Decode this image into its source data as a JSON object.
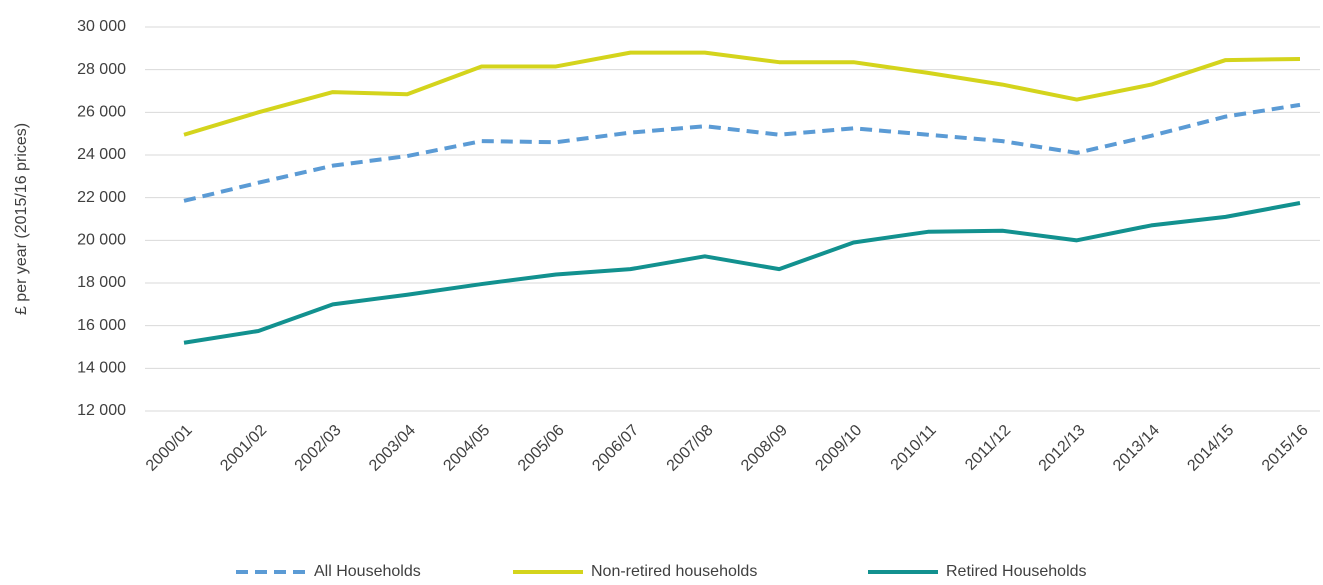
{
  "chart_data": {
    "type": "line",
    "y_label": "£ per year (2015/16 prices)",
    "categories": [
      "2000/01",
      "2001/02",
      "2002/03",
      "2003/04",
      "2004/05",
      "2005/06",
      "2006/07",
      "2007/08",
      "2008/09",
      "2009/10",
      "2010/11",
      "2011/12",
      "2012/13",
      "2013/14",
      "2014/15",
      "2015/16"
    ],
    "series": [
      {
        "name": "All Households",
        "color": "#5b9bd5",
        "dashed": true,
        "values": [
          21850,
          22700,
          23500,
          23950,
          24650,
          24600,
          25050,
          25350,
          24950,
          25250,
          24950,
          24650,
          24100,
          24900,
          25800,
          26350
        ]
      },
      {
        "name": "Non-retired households",
        "color": "#d4d41c",
        "dashed": false,
        "values": [
          24950,
          26000,
          26950,
          26850,
          28150,
          28150,
          28800,
          28800,
          28350,
          28350,
          27850,
          27300,
          26600,
          27300,
          28450,
          28500
        ]
      },
      {
        "name": "Retired Households",
        "color": "#12918f",
        "dashed": false,
        "values": [
          15200,
          15750,
          17000,
          17450,
          17950,
          18400,
          18650,
          19250,
          18650,
          19900,
          20400,
          20450,
          20000,
          20700,
          21100,
          21750
        ]
      }
    ],
    "ylim": [
      12000,
      30000
    ],
    "yticks": [
      {
        "value": 12000,
        "label": "12 000"
      },
      {
        "value": 14000,
        "label": "14 000"
      },
      {
        "value": 16000,
        "label": "16 000"
      },
      {
        "value": 18000,
        "label": "18 000"
      },
      {
        "value": 20000,
        "label": "20 000"
      },
      {
        "value": 22000,
        "label": "22 000"
      },
      {
        "value": 24000,
        "label": "24 000"
      },
      {
        "value": 26000,
        "label": "26 000"
      },
      {
        "value": 28000,
        "label": "28 000"
      },
      {
        "value": 30000,
        "label": "30 000"
      }
    ],
    "grid": true,
    "legend": "bottom"
  }
}
